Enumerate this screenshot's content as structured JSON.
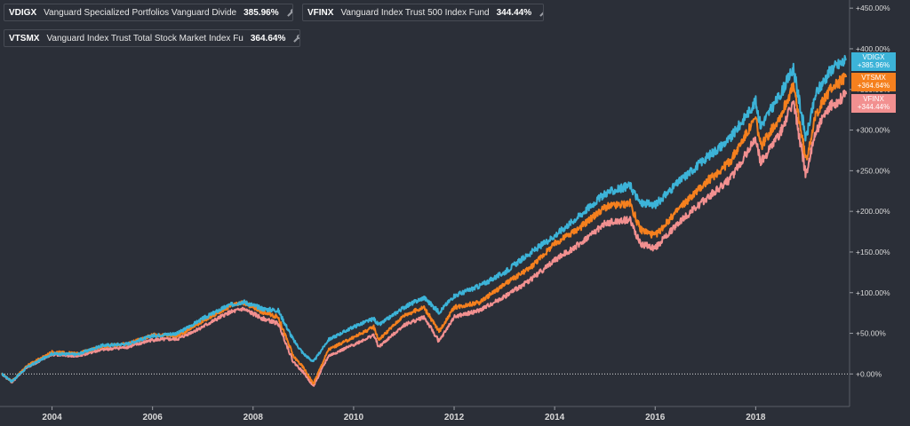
{
  "colors": {
    "background": "#2b2f38",
    "VDIGX": "#3cb3d8",
    "VTSMX": "#f5801e",
    "VFINX": "#f29090",
    "grid": "#3a3e47",
    "baseline": "#d9d9d9"
  },
  "legend": [
    {
      "ticker": "VDIGX",
      "name": "Vanguard Specialized Portfolios Vanguard Divide",
      "pct": "385.96%",
      "color": "#3cb3d8",
      "action_icon": "wrench-icon",
      "close_icon": "close-icon"
    },
    {
      "ticker": "VFINX",
      "name": "Vanguard Index Trust 500 Index Fund",
      "pct": "344.44%",
      "color": "#f29090",
      "action_icon": "wrench-icon",
      "close_icon": "close-icon"
    },
    {
      "ticker": "VTSMX",
      "name": "Vanguard Index Trust Total Stock Market Index Fu",
      "pct": "364.64%",
      "color": "#f5801e",
      "action_icon": "wrench-icon",
      "close_icon": "close-icon"
    }
  ],
  "badges": [
    {
      "ticker": "VDIGX",
      "value": "+385.96%",
      "color": "#3cb3d8"
    },
    {
      "ticker": "VTSMX",
      "value": "+364.64%",
      "color": "#f5801e"
    },
    {
      "ticker": "VFINX",
      "value": "+344.44%",
      "color": "#f29090"
    }
  ],
  "chart_data": {
    "type": "line",
    "xlabel": "",
    "ylabel": "",
    "xlim": [
      2003.0,
      2019.85
    ],
    "ylim": [
      -40,
      460
    ],
    "x_ticks": [
      {
        "value": 2004,
        "label": "2004"
      },
      {
        "value": 2006,
        "label": "2006"
      },
      {
        "value": 2008,
        "label": "2008"
      },
      {
        "value": 2010,
        "label": "2010"
      },
      {
        "value": 2012,
        "label": "2012"
      },
      {
        "value": 2014,
        "label": "2014"
      },
      {
        "value": 2016,
        "label": "2016"
      },
      {
        "value": 2018,
        "label": "2018"
      }
    ],
    "y_ticks": [
      {
        "value": 0,
        "label": "+0.00%"
      },
      {
        "value": 50,
        "label": "+50.00%"
      },
      {
        "value": 100,
        "label": "+100.00%"
      },
      {
        "value": 150,
        "label": "+150.00%"
      },
      {
        "value": 200,
        "label": "+200.00%"
      },
      {
        "value": 250,
        "label": "+250.00%"
      },
      {
        "value": 300,
        "label": "+300.00%"
      },
      {
        "value": 350,
        "label": "+350.00%"
      },
      {
        "value": 400,
        "label": "+400.00%"
      },
      {
        "value": 450,
        "label": "+450.00%"
      }
    ],
    "series": [
      {
        "name": "VDIGX",
        "color": "#3cb3d8",
        "points": [
          [
            2003.0,
            0
          ],
          [
            2003.2,
            -9
          ],
          [
            2003.5,
            8
          ],
          [
            2004.0,
            25
          ],
          [
            2004.5,
            24
          ],
          [
            2005.0,
            35
          ],
          [
            2005.5,
            37
          ],
          [
            2006.0,
            47
          ],
          [
            2006.5,
            50
          ],
          [
            2007.0,
            68
          ],
          [
            2007.5,
            84
          ],
          [
            2007.8,
            89
          ],
          [
            2008.2,
            80
          ],
          [
            2008.5,
            78
          ],
          [
            2008.8,
            42
          ],
          [
            2009.0,
            25
          ],
          [
            2009.2,
            15
          ],
          [
            2009.5,
            42
          ],
          [
            2010.0,
            58
          ],
          [
            2010.4,
            68
          ],
          [
            2010.5,
            60
          ],
          [
            2011.0,
            82
          ],
          [
            2011.4,
            94
          ],
          [
            2011.7,
            76
          ],
          [
            2012.0,
            96
          ],
          [
            2012.5,
            108
          ],
          [
            2013.0,
            125
          ],
          [
            2013.5,
            148
          ],
          [
            2014.0,
            170
          ],
          [
            2014.5,
            195
          ],
          [
            2015.0,
            222
          ],
          [
            2015.5,
            232
          ],
          [
            2015.7,
            210
          ],
          [
            2016.0,
            208
          ],
          [
            2016.5,
            238
          ],
          [
            2017.0,
            265
          ],
          [
            2017.5,
            290
          ],
          [
            2018.0,
            335
          ],
          [
            2018.1,
            305
          ],
          [
            2018.5,
            345
          ],
          [
            2018.75,
            376
          ],
          [
            2019.0,
            290
          ],
          [
            2019.2,
            345
          ],
          [
            2019.5,
            375
          ],
          [
            2019.8,
            386
          ]
        ]
      },
      {
        "name": "VTSMX",
        "color": "#f5801e",
        "points": [
          [
            2003.0,
            0
          ],
          [
            2003.2,
            -9
          ],
          [
            2003.5,
            10
          ],
          [
            2004.0,
            27
          ],
          [
            2004.5,
            25
          ],
          [
            2005.0,
            34
          ],
          [
            2005.5,
            37
          ],
          [
            2006.0,
            48
          ],
          [
            2006.5,
            47
          ],
          [
            2007.0,
            65
          ],
          [
            2007.5,
            82
          ],
          [
            2007.8,
            88
          ],
          [
            2008.2,
            76
          ],
          [
            2008.5,
            70
          ],
          [
            2008.8,
            22
          ],
          [
            2009.0,
            8
          ],
          [
            2009.2,
            -12
          ],
          [
            2009.5,
            30
          ],
          [
            2010.0,
            45
          ],
          [
            2010.4,
            58
          ],
          [
            2010.5,
            42
          ],
          [
            2011.0,
            72
          ],
          [
            2011.4,
            82
          ],
          [
            2011.7,
            52
          ],
          [
            2012.0,
            82
          ],
          [
            2012.5,
            88
          ],
          [
            2013.0,
            110
          ],
          [
            2013.5,
            130
          ],
          [
            2014.0,
            160
          ],
          [
            2014.5,
            180
          ],
          [
            2015.0,
            205
          ],
          [
            2015.5,
            210
          ],
          [
            2015.7,
            178
          ],
          [
            2016.0,
            170
          ],
          [
            2016.5,
            205
          ],
          [
            2017.0,
            235
          ],
          [
            2017.5,
            262
          ],
          [
            2018.0,
            315
          ],
          [
            2018.1,
            280
          ],
          [
            2018.5,
            318
          ],
          [
            2018.75,
            355
          ],
          [
            2019.0,
            262
          ],
          [
            2019.2,
            320
          ],
          [
            2019.5,
            352
          ],
          [
            2019.8,
            365
          ]
        ]
      },
      {
        "name": "VFINX",
        "color": "#f29090",
        "points": [
          [
            2003.0,
            0
          ],
          [
            2003.2,
            -10
          ],
          [
            2003.5,
            8
          ],
          [
            2004.0,
            24
          ],
          [
            2004.5,
            22
          ],
          [
            2005.0,
            30
          ],
          [
            2005.5,
            33
          ],
          [
            2006.0,
            42
          ],
          [
            2006.5,
            43
          ],
          [
            2007.0,
            58
          ],
          [
            2007.5,
            75
          ],
          [
            2007.8,
            80
          ],
          [
            2008.2,
            68
          ],
          [
            2008.5,
            62
          ],
          [
            2008.8,
            15
          ],
          [
            2009.0,
            2
          ],
          [
            2009.2,
            -15
          ],
          [
            2009.5,
            22
          ],
          [
            2010.0,
            36
          ],
          [
            2010.4,
            48
          ],
          [
            2010.5,
            33
          ],
          [
            2011.0,
            60
          ],
          [
            2011.4,
            70
          ],
          [
            2011.7,
            40
          ],
          [
            2012.0,
            70
          ],
          [
            2012.5,
            78
          ],
          [
            2013.0,
            95
          ],
          [
            2013.5,
            115
          ],
          [
            2014.0,
            140
          ],
          [
            2014.5,
            160
          ],
          [
            2015.0,
            185
          ],
          [
            2015.5,
            190
          ],
          [
            2015.7,
            160
          ],
          [
            2016.0,
            155
          ],
          [
            2016.5,
            188
          ],
          [
            2017.0,
            215
          ],
          [
            2017.5,
            240
          ],
          [
            2018.0,
            290
          ],
          [
            2018.1,
            260
          ],
          [
            2018.5,
            298
          ],
          [
            2018.75,
            335
          ],
          [
            2019.0,
            245
          ],
          [
            2019.2,
            300
          ],
          [
            2019.5,
            330
          ],
          [
            2019.8,
            344
          ]
        ]
      }
    ]
  }
}
